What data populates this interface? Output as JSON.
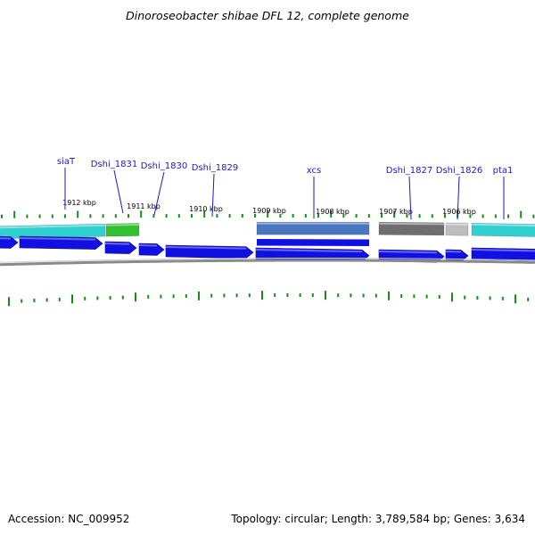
{
  "title": "Dinoroseobacter shibae DFL 12, complete genome",
  "footer": {
    "accession": "Accession: NC_009952",
    "topology": "Topology: circular; Length: 3,789,584 bp; Genes: 3,634"
  },
  "scale_labels": [
    "1912 kbp",
    "1911 kbp",
    "1910 kbp",
    "1909 kbp",
    "1908 kbp",
    "1907 kbp",
    "1906 kbp"
  ],
  "gene_labels": [
    "siaT",
    "Dshi_1831",
    "Dshi_1830",
    "Dshi_1829",
    "xcs",
    "Dshi_1827",
    "Dshi_1826",
    "pta1"
  ],
  "colors": {
    "cds_arrow": "#1010e0",
    "backbone": "#8a8a8a",
    "ticks": "#1a8a1a",
    "cyan": "#30d0d0",
    "green": "#30c030",
    "steel": "#4a78c0",
    "dark_gray": "#6e6e6e",
    "light_gray": "#bdbdbd"
  }
}
